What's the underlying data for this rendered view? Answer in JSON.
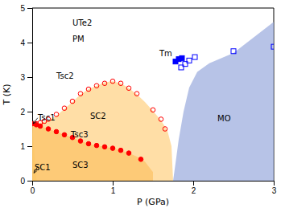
{
  "chart_data": {
    "type": "scatter",
    "xlabel": "P (GPa)",
    "ylabel": "T (K)",
    "xlim": [
      0,
      3
    ],
    "ylim": [
      0,
      5
    ],
    "xticks": [
      0,
      1,
      2,
      3
    ],
    "yticks": [
      0,
      1,
      2,
      3,
      4,
      5
    ],
    "series": [
      {
        "type": "area",
        "color": "#FFDD44",
        "x": [
          0.0,
          0.0,
          0.055,
          0.0
        ],
        "values": [
          0.0,
          1.65,
          0.0,
          0.0
        ]
      },
      {
        "type": "area",
        "color": "#F5A020",
        "x": [
          0.0,
          0.0,
          0.05,
          0.1,
          0.2,
          0.3,
          0.4,
          0.5,
          0.6,
          0.7,
          0.8,
          0.9,
          1.0,
          1.1,
          1.2,
          1.3,
          1.4,
          1.5,
          1.5,
          0.0
        ],
        "values": [
          0.0,
          1.65,
          1.62,
          1.58,
          1.5,
          1.42,
          1.33,
          1.25,
          1.15,
          1.07,
          1.02,
          0.98,
          0.94,
          0.88,
          0.8,
          0.7,
          0.55,
          0.25,
          0.0,
          0.0
        ]
      },
      {
        "type": "area",
        "color": "#FFD080",
        "x": [
          0.0,
          0.0,
          0.05,
          0.1,
          0.2,
          0.3,
          0.4,
          0.5,
          0.6,
          0.7,
          0.8,
          0.9,
          1.0,
          1.1,
          1.2,
          1.3,
          1.4,
          1.5,
          1.6,
          1.68,
          1.73,
          1.75,
          0.0
        ],
        "values": [
          1.65,
          1.65,
          1.65,
          1.68,
          1.75,
          1.88,
          2.08,
          2.28,
          2.5,
          2.65,
          2.75,
          2.85,
          2.88,
          2.82,
          2.68,
          2.5,
          2.28,
          2.02,
          1.75,
          1.45,
          1.0,
          0.0,
          0.0
        ]
      },
      {
        "type": "area",
        "color": "#99AADD",
        "x": [
          1.75,
          1.78,
          1.82,
          1.88,
          1.95,
          2.05,
          2.2,
          2.5,
          3.0,
          3.0,
          1.75
        ],
        "values": [
          0.0,
          0.5,
          1.2,
          2.0,
          2.7,
          3.15,
          3.4,
          3.7,
          4.6,
          0.0,
          0.0
        ]
      },
      {
        "type": "scatter",
        "color": "red",
        "marker": "circle-open",
        "x": [
          0.05,
          0.1,
          0.15,
          0.2,
          0.3,
          0.4,
          0.5,
          0.6,
          0.7,
          0.8,
          0.9,
          1.0,
          1.1,
          1.2,
          1.3,
          1.5,
          1.6,
          1.65
        ],
        "values": [
          1.65,
          1.68,
          1.72,
          1.78,
          1.92,
          2.1,
          2.3,
          2.52,
          2.65,
          2.75,
          2.82,
          2.88,
          2.82,
          2.68,
          2.52,
          2.05,
          1.78,
          1.5
        ]
      },
      {
        "type": "scatter",
        "color": "red",
        "marker": "circle",
        "x": [
          0.05,
          0.1,
          0.2,
          0.3,
          0.4,
          0.5,
          0.6,
          0.7,
          0.8,
          0.9,
          1.0,
          1.1,
          1.2,
          1.35
        ],
        "values": [
          1.62,
          1.58,
          1.5,
          1.42,
          1.33,
          1.25,
          1.15,
          1.07,
          1.02,
          0.98,
          0.94,
          0.88,
          0.8,
          0.62
        ]
      },
      {
        "type": "scatter",
        "color": "red",
        "marker": "circle",
        "x": [
          0.0
        ],
        "values": [
          1.65
        ]
      },
      {
        "type": "scatter",
        "color": "blue",
        "marker": "square",
        "x": [
          1.78,
          1.82,
          1.86
        ],
        "values": [
          3.45,
          3.52,
          3.55
        ]
      },
      {
        "type": "scatter",
        "color": "blue",
        "marker": "square-open",
        "x": [
          1.85,
          1.9,
          1.95,
          2.02,
          2.5,
          3.0
        ],
        "values": [
          3.28,
          3.38,
          3.48,
          3.58,
          3.75,
          3.88
        ]
      }
    ],
    "annotations": [
      {
        "text": "UTe2",
        "x": 0.5,
        "y": 4.55
      },
      {
        "text": "PM",
        "x": 0.5,
        "y": 4.1
      },
      {
        "text": "SC1",
        "x": 0.03,
        "y": 0.38,
        "arrow_from": [
          0.07,
          0.42
        ],
        "arrow_to": [
          0.022,
          0.22
        ]
      },
      {
        "text": "SC2",
        "x": 0.72,
        "y": 1.85
      },
      {
        "text": "SC3",
        "x": 0.5,
        "y": 0.45
      },
      {
        "text": "MO",
        "x": 2.3,
        "y": 1.8
      },
      {
        "text": "Tsc2",
        "x": 0.3,
        "y": 3.02
      },
      {
        "text": "Tsc3",
        "x": 0.48,
        "y": 1.32
      },
      {
        "text": "Tsc1",
        "x": 0.07,
        "y": 1.82,
        "arrow_from": [
          0.068,
          1.82
        ],
        "arrow_to": [
          0.012,
          1.65
        ]
      },
      {
        "text": "Tm",
        "x": 1.58,
        "y": 3.68
      }
    ]
  }
}
